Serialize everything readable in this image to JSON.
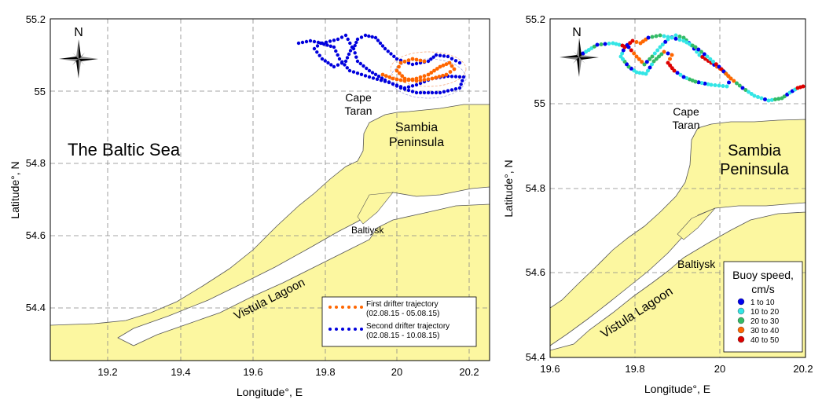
{
  "left_map": {
    "x_ticks": [
      "19.2",
      "19.4",
      "19.6",
      "19.8",
      "20",
      "20.2"
    ],
    "y_ticks": [
      "55.2",
      "55",
      "54.8",
      "54.6",
      "54.4"
    ],
    "xlabel": "Longitude°, E",
    "ylabel": "Latitude°, N",
    "north_label": "N",
    "labels": {
      "sea": "The Baltic Sea",
      "cape_1": "Cape",
      "cape_2": "Taran",
      "peninsula_1": "Sambia",
      "peninsula_2": "Peninsula",
      "baltiysk": "Baltiysk",
      "lagoon": "Vistula Lagoon"
    },
    "legend": [
      {
        "name": "First drifter trajectory",
        "dates": "(02.08.15 - 05.08.15)",
        "color": "#ff6600"
      },
      {
        "name": "Second drifter trajectory",
        "dates": "(02.08.15 - 10.08.15)",
        "color": "#0000dd"
      }
    ]
  },
  "right_map": {
    "x_ticks": [
      "19.6",
      "19.8",
      "20",
      "20.2"
    ],
    "y_ticks": [
      "55.2",
      "55",
      "54.8",
      "54.6",
      "54.4"
    ],
    "xlabel": "Longitude°, E",
    "ylabel": "Latitude°, N",
    "north_label": "N",
    "labels": {
      "cape_1": "Cape",
      "cape_2": "Taran",
      "peninsula_1": "Sambia",
      "peninsula_2": "Peninsula",
      "baltiysk": "Baltiysk",
      "lagoon": "Vistula Lagoon"
    },
    "legend_title_1": "Buoy speed,",
    "legend_title_2": "cm/s",
    "legend": [
      {
        "label": "1  to  10",
        "color": "#0000ee"
      },
      {
        "label": "10  to  20",
        "color": "#33e5e5"
      },
      {
        "label": "20  to  30",
        "color": "#33bb66"
      },
      {
        "label": "30  to  40",
        "color": "#ff6600"
      },
      {
        "label": "40  to  50",
        "color": "#dd0000"
      }
    ]
  },
  "colors": {
    "land": "#fcf7a0",
    "sea": "#ffffff",
    "first_drifter": "#ff6600",
    "second_drifter": "#0000dd"
  }
}
